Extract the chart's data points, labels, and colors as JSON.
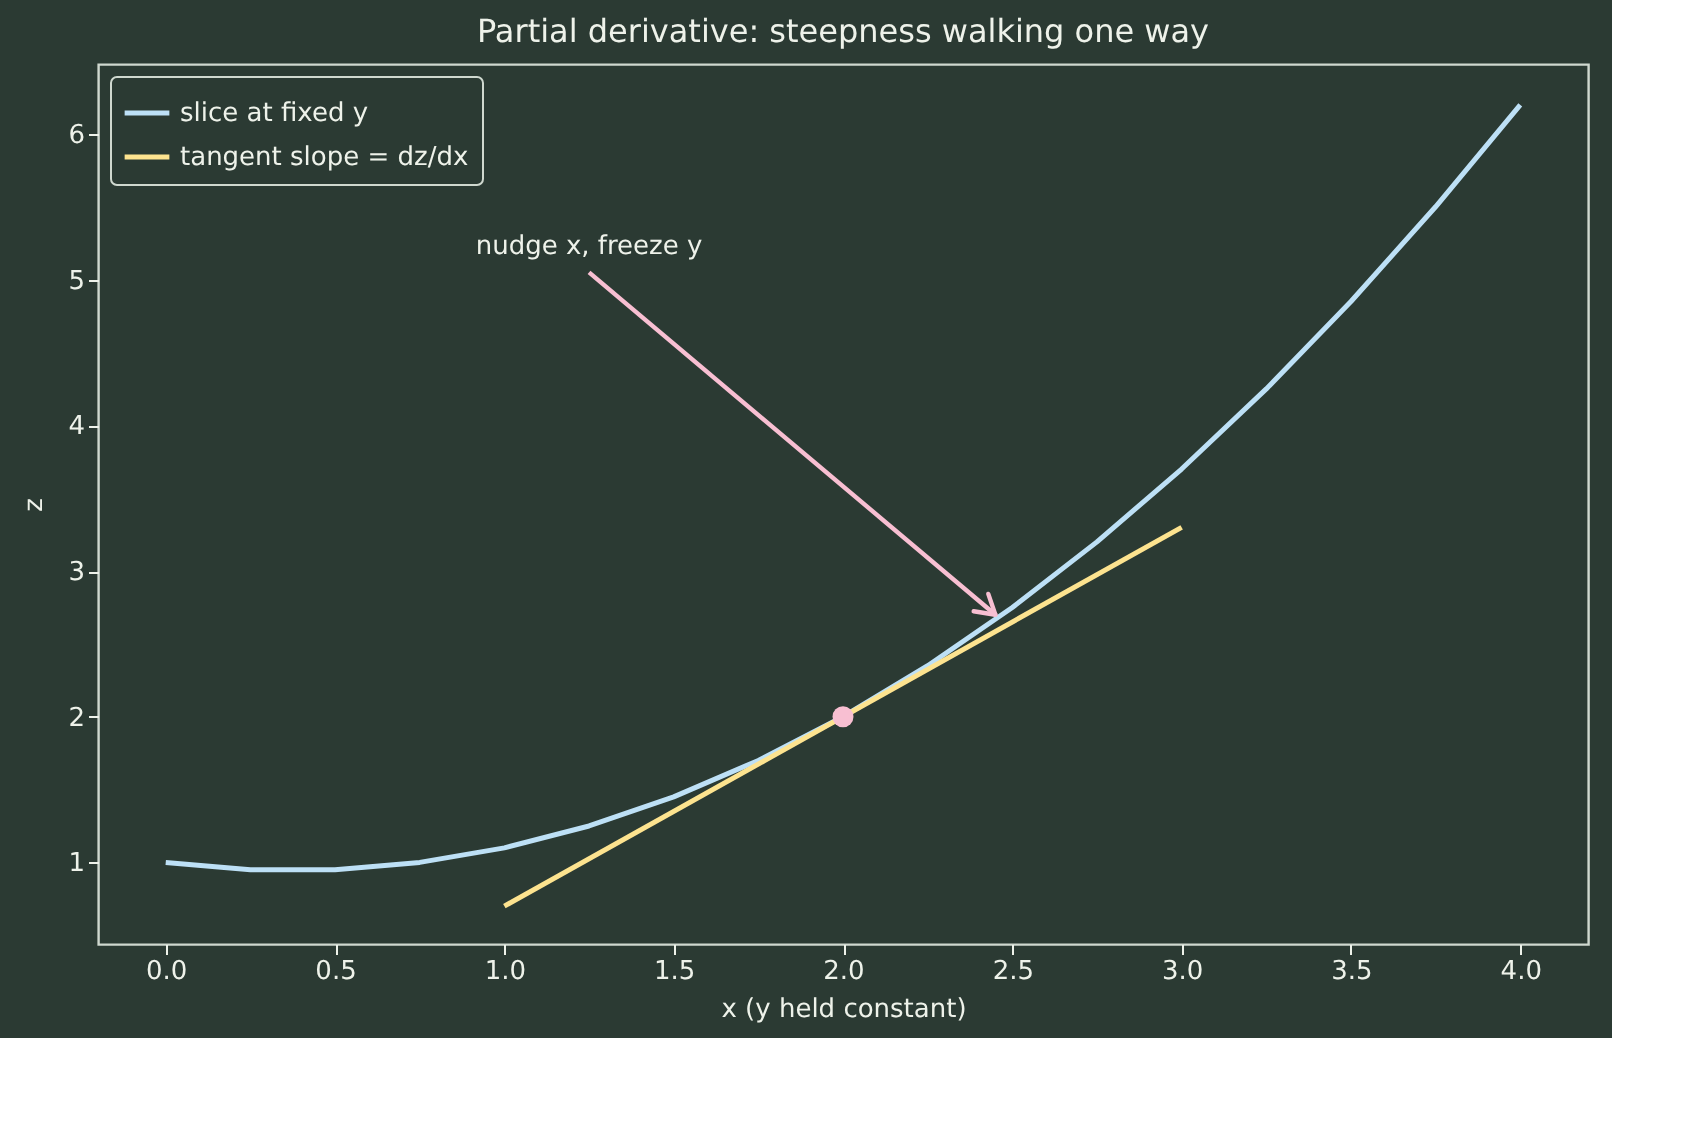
{
  "chart_data": {
    "type": "line",
    "title": "Partial derivative: steepness walking one way",
    "xlabel": "x  (y held constant)",
    "ylabel": "z",
    "series": [
      {
        "name": "slice at fixed y",
        "color": "#bde0f6",
        "x": [
          0,
          0.25,
          0.5,
          0.75,
          1,
          1.25,
          1.5,
          1.75,
          2,
          2.25,
          2.5,
          2.75,
          3,
          3.25,
          3.5,
          3.75,
          4
        ],
        "values": [
          1.0,
          0.95,
          0.95,
          1.0,
          1.1,
          1.25,
          1.45,
          1.7,
          2.0,
          2.35,
          2.75,
          3.2,
          3.7,
          4.25,
          4.85,
          5.5,
          6.2
        ]
      },
      {
        "name": "tangent slope = dz/dx",
        "color": "#fde38f",
        "x": [
          1,
          3
        ],
        "values": [
          0.7,
          3.3
        ]
      },
      {
        "type": "scatter",
        "color": "#f8bfd2",
        "x": [
          2
        ],
        "values": [
          2
        ],
        "marker": "circle"
      }
    ],
    "annotations": [
      {
        "text": "nudge x, freeze y",
        "x": 2.45,
        "y": 2.7
      }
    ],
    "xlim": [
      -0.2,
      4.2
    ],
    "ylim": [
      0.44,
      6.48
    ],
    "xticks": [
      {
        "value": 0,
        "label": "0.0"
      },
      {
        "value": 0.5,
        "label": "0.5"
      },
      {
        "value": 1,
        "label": "1.0"
      },
      {
        "value": 1.5,
        "label": "1.5"
      },
      {
        "value": 2,
        "label": "2.0"
      },
      {
        "value": 2.5,
        "label": "2.5"
      },
      {
        "value": 3,
        "label": "3.0"
      },
      {
        "value": 3.5,
        "label": "3.5"
      },
      {
        "value": 4,
        "label": "4.0"
      }
    ],
    "yticks": [
      1,
      2,
      3,
      4,
      5,
      6
    ],
    "grid": false,
    "legend": "top left",
    "marker": "none",
    "line_style": "solid"
  }
}
